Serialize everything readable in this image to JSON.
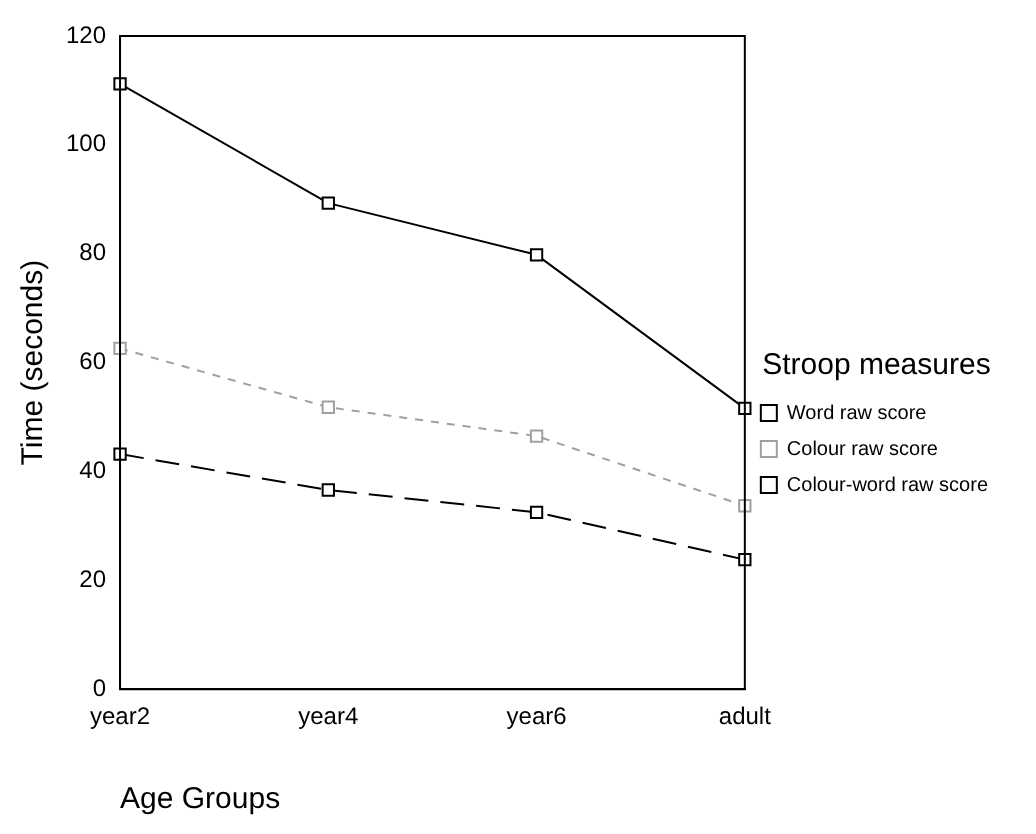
{
  "chart_data": {
    "type": "line",
    "xlabel": "Age Groups",
    "ylabel": "Time (seconds)",
    "legend_title": "Stroop measures",
    "legend": "right",
    "grid": false,
    "marker": "square",
    "categories": [
      "year2",
      "year4",
      "year6",
      "adult"
    ],
    "ylim": [
      0,
      120
    ],
    "yticks": [
      0,
      20,
      40,
      60,
      80,
      100,
      120
    ],
    "series": [
      {
        "name": "Word raw score",
        "color": "#000000",
        "line_style": "dashed",
        "values": [
          43.2,
          36.6,
          32.5,
          23.8
        ]
      },
      {
        "name": "Colour raw score",
        "color": "#a0a0a0",
        "line_style": "dotted",
        "values": [
          62.6,
          51.8,
          46.5,
          33.7
        ]
      },
      {
        "name": "Colour-word raw score",
        "color": "#000000",
        "line_style": "solid",
        "values": [
          111.2,
          89.3,
          79.8,
          51.6
        ]
      }
    ]
  }
}
